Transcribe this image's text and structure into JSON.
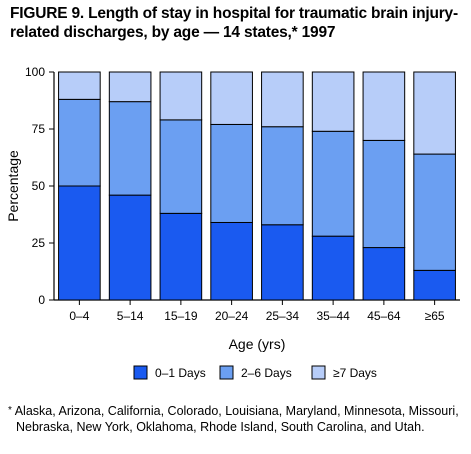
{
  "title": "FIGURE 9. Length of stay in hospital for traumatic brain injury-related discharges, by age — 14 states,* 1997",
  "footnote": {
    "marker": "*",
    "text": "Alaska, Arizona, California, Colorado, Louisiana, Maryland, Minnesota, Missouri, Nebraska, New York, Oklahoma, Rhode Island, South Carolina, and Utah."
  },
  "chart_data": {
    "type": "bar",
    "stacked": true,
    "xlabel": "Age (yrs)",
    "ylabel": "Percentage",
    "ylim": [
      0,
      100
    ],
    "yticks": [
      0,
      25,
      50,
      75,
      100
    ],
    "grid": false,
    "legend_position": "bottom",
    "categories": [
      "0–4",
      "5–14",
      "15–19",
      "20–24",
      "25–34",
      "35–44",
      "45–64",
      "≥65"
    ],
    "series": [
      {
        "name": "0–1 Days",
        "color": "#1a5af0",
        "values": [
          50,
          46,
          38,
          34,
          33,
          28,
          23,
          13
        ]
      },
      {
        "name": "2–6 Days",
        "color": "#6b9ff2",
        "values": [
          38,
          41,
          41,
          43,
          43,
          46,
          47,
          51
        ]
      },
      {
        "name": "≥7 Days",
        "color": "#b7cdf9",
        "values": [
          12,
          13,
          21,
          23,
          24,
          26,
          30,
          36
        ]
      }
    ]
  }
}
